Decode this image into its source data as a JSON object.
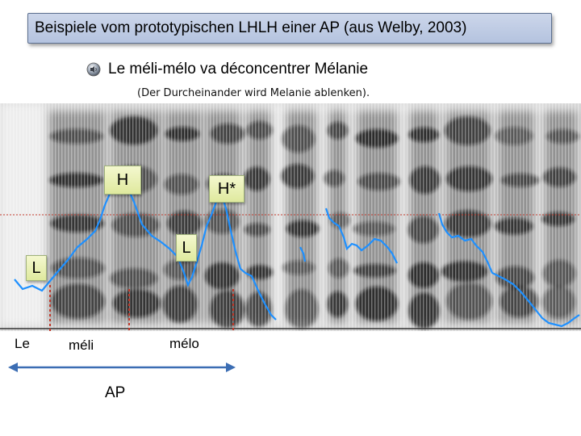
{
  "title": "Beispiele vom prototypischen LHLH einer AP (aus Welby, 2003)",
  "example": {
    "icon": "speaker-icon",
    "sentence": "Le méli-mélo va déconcentrer Mélanie",
    "translation": "(Der Durcheinander wird Melanie ablenken)."
  },
  "tones": {
    "L_initial": "L",
    "H": "H",
    "L_medial": "L",
    "H_star": "H*"
  },
  "words": {
    "le": "Le",
    "meli": "méli",
    "melo": "mélo"
  },
  "phrase_label": "AP",
  "colors": {
    "pitch_contour": "#1e90ff",
    "reference_line": "#c0392b",
    "boundary_line": "#c0392b",
    "arrow": "#3b6db3"
  }
}
